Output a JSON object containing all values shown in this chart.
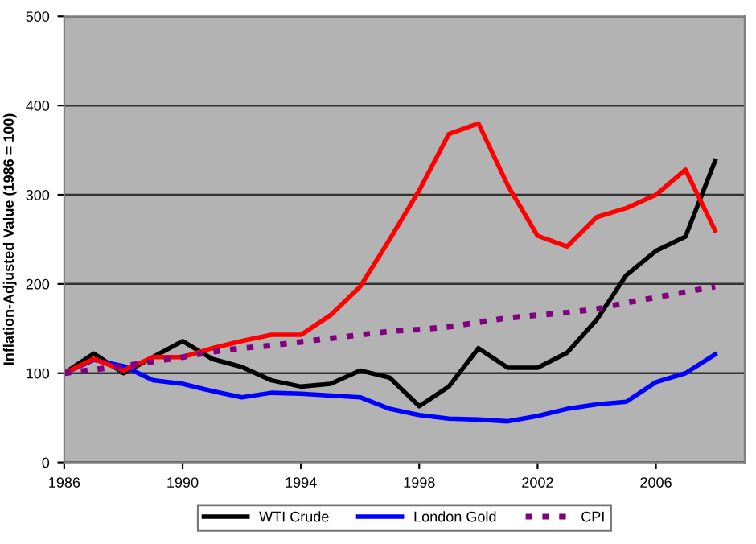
{
  "chart_data": {
    "type": "line",
    "ylabel": "Inflation-Adjusted Value (1986 = 100)",
    "x": [
      1986,
      1987,
      1988,
      1989,
      1990,
      1991,
      1992,
      1993,
      1994,
      1995,
      1996,
      1997,
      1998,
      1999,
      2000,
      2001,
      2002,
      2003,
      2004,
      2005,
      2006,
      2007,
      2008
    ],
    "series": [
      {
        "name": "WTI Crude",
        "color": "#000000",
        "values": [
          100,
          122,
          100,
          118,
          136,
          116,
          107,
          92,
          85,
          88,
          103,
          95,
          63,
          85,
          128,
          106,
          106,
          123,
          160,
          210,
          237,
          253,
          338
        ]
      },
      {
        "name": "London Gold",
        "color": "#0000ff",
        "values": [
          100,
          115,
          108,
          92,
          88,
          80,
          73,
          78,
          77,
          75,
          73,
          60,
          53,
          49,
          48,
          46,
          52,
          60,
          65,
          68,
          90,
          100,
          121
        ]
      },
      {
        "color": "#ff0000",
        "values": [
          100,
          116,
          103,
          118,
          118,
          128,
          136,
          143,
          143,
          165,
          197,
          250,
          305,
          368,
          380,
          310,
          254,
          242,
          275,
          285,
          300,
          328,
          260
        ]
      },
      {
        "name": "CPI",
        "color": "#800080",
        "line_style": "dotted",
        "values": [
          100,
          104,
          108,
          113,
          118,
          124,
          128,
          131,
          135,
          139,
          143,
          147,
          149,
          152,
          157,
          162,
          165,
          168,
          172,
          179,
          185,
          191,
          197
        ]
      }
    ],
    "xlim": [
      1986,
      2009
    ],
    "xticks": [
      1986,
      1990,
      1994,
      1998,
      2002,
      2006
    ],
    "ylim": [
      0,
      500
    ],
    "yticks": [
      0,
      100,
      200,
      300,
      400,
      500
    ],
    "grid": "y",
    "legend": "bottom",
    "marker": "none",
    "line_style": "solid"
  }
}
